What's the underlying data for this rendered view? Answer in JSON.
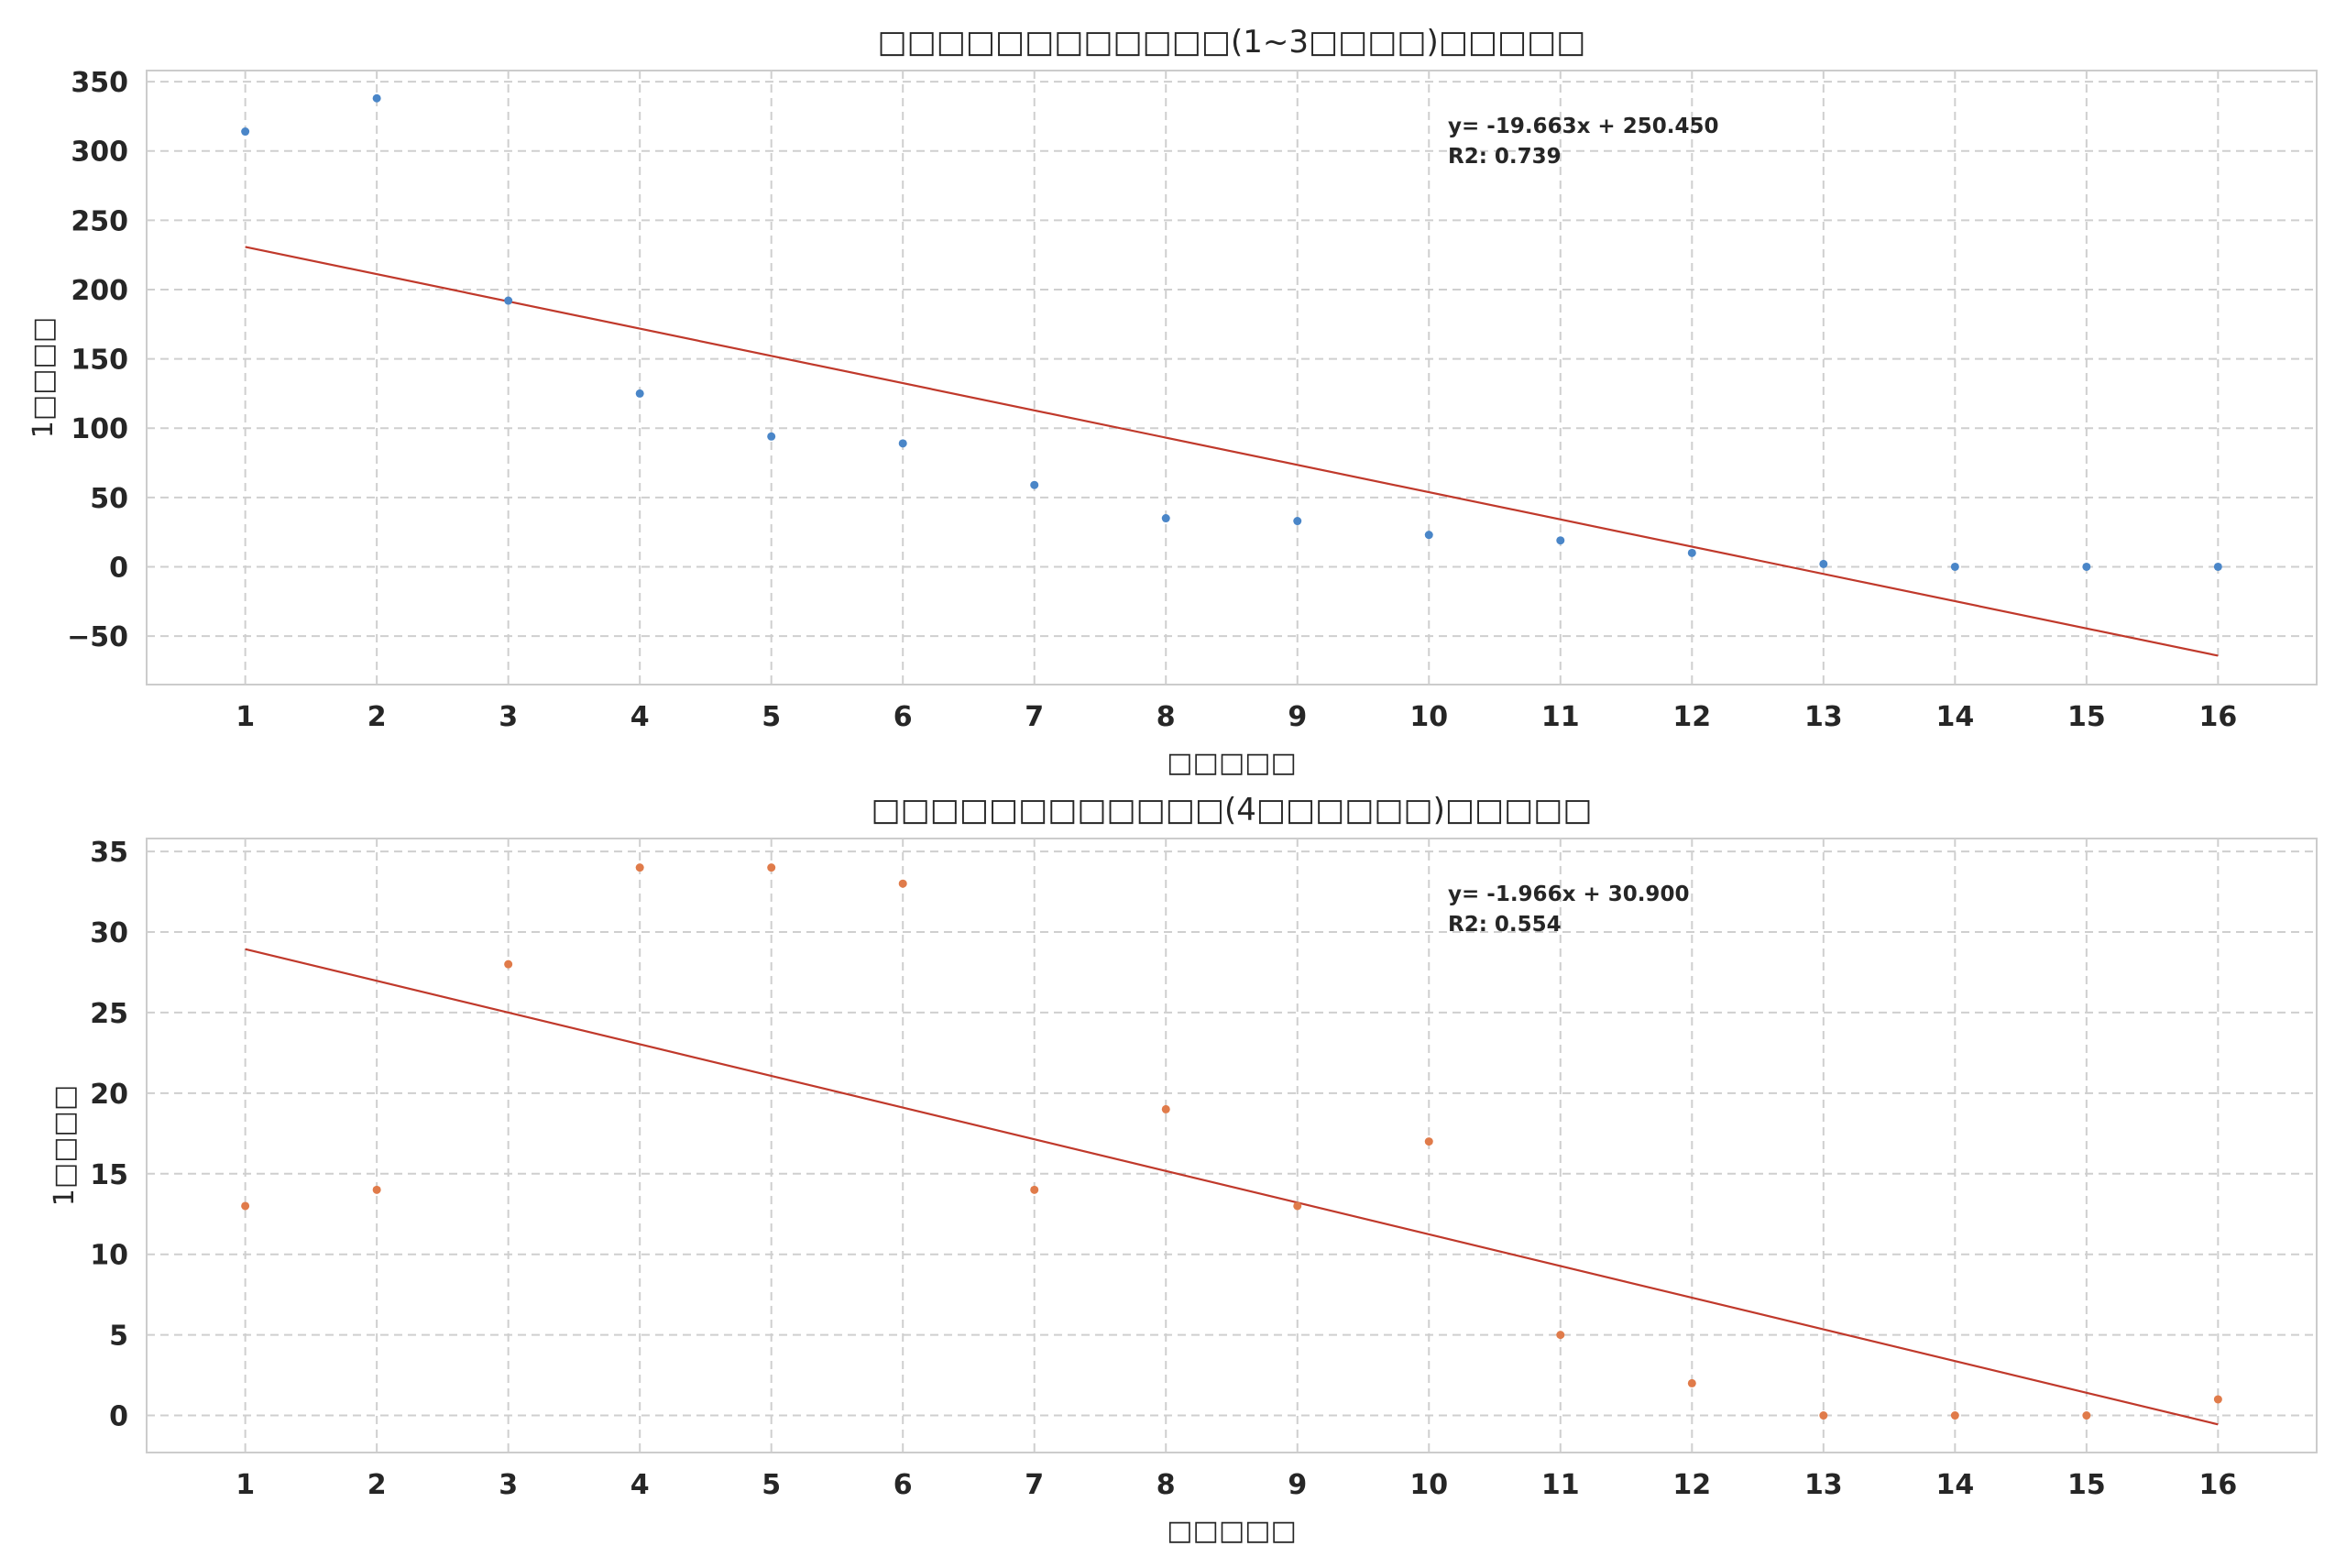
{
  "chart_data": [
    {
      "type": "scatter",
      "title": "□□□□□□□□□□□□(1~3□□□□)□□□□□",
      "xlabel": "□□□□□",
      "ylabel": "1□□□□",
      "x": [
        1,
        2,
        3,
        4,
        5,
        6,
        7,
        8,
        9,
        10,
        11,
        12,
        13,
        14,
        15,
        16
      ],
      "xticks": [
        "1",
        "2",
        "3",
        "4",
        "5",
        "6",
        "7",
        "8",
        "9",
        "10",
        "11",
        "12",
        "13",
        "14",
        "15",
        "16"
      ],
      "xlim": [
        0.25,
        16.75
      ],
      "ylim": [
        -85,
        358
      ],
      "yticks": [
        -50,
        0,
        50,
        100,
        150,
        200,
        250,
        300,
        350
      ],
      "ytick_labels": [
        "−50",
        "0",
        "50",
        "100",
        "150",
        "200",
        "250",
        "300",
        "350"
      ],
      "grid": true,
      "series": [
        {
          "values": [
            314,
            338,
            192,
            125,
            94,
            89,
            59,
            35,
            33,
            23,
            19,
            10,
            2,
            0,
            0,
            0
          ],
          "color": "#4a86c8"
        }
      ],
      "fit": {
        "slope": -19.663,
        "intercept": 250.45,
        "color": "#c0392b"
      },
      "annotation": [
        "y= -19.663x + 250.450",
        "R2: 0.739"
      ]
    },
    {
      "type": "scatter",
      "title": "□□□□□□□□□□□□(4□□□□□□)□□□□□",
      "xlabel": "□□□□□",
      "ylabel": "1□□□□",
      "x": [
        1,
        2,
        3,
        4,
        5,
        6,
        7,
        8,
        9,
        10,
        11,
        12,
        13,
        14,
        15,
        16
      ],
      "xticks": [
        "1",
        "2",
        "3",
        "4",
        "5",
        "6",
        "7",
        "8",
        "9",
        "10",
        "11",
        "12",
        "13",
        "14",
        "15",
        "16"
      ],
      "xlim": [
        0.25,
        16.75
      ],
      "ylim": [
        -2.3,
        35.8
      ],
      "yticks": [
        0,
        5,
        10,
        15,
        20,
        25,
        30,
        35
      ],
      "ytick_labels": [
        "0",
        "5",
        "10",
        "15",
        "20",
        "25",
        "30",
        "35"
      ],
      "grid": true,
      "series": [
        {
          "values": [
            13,
            14,
            28,
            34,
            34,
            33,
            14,
            19,
            13,
            17,
            5,
            2,
            0,
            0,
            0,
            1
          ],
          "color": "#e07b4a"
        }
      ],
      "fit": {
        "slope": -1.966,
        "intercept": 30.9,
        "color": "#c0392b"
      },
      "annotation": [
        "y= -1.966x + 30.900",
        "R2: 0.554"
      ]
    }
  ]
}
